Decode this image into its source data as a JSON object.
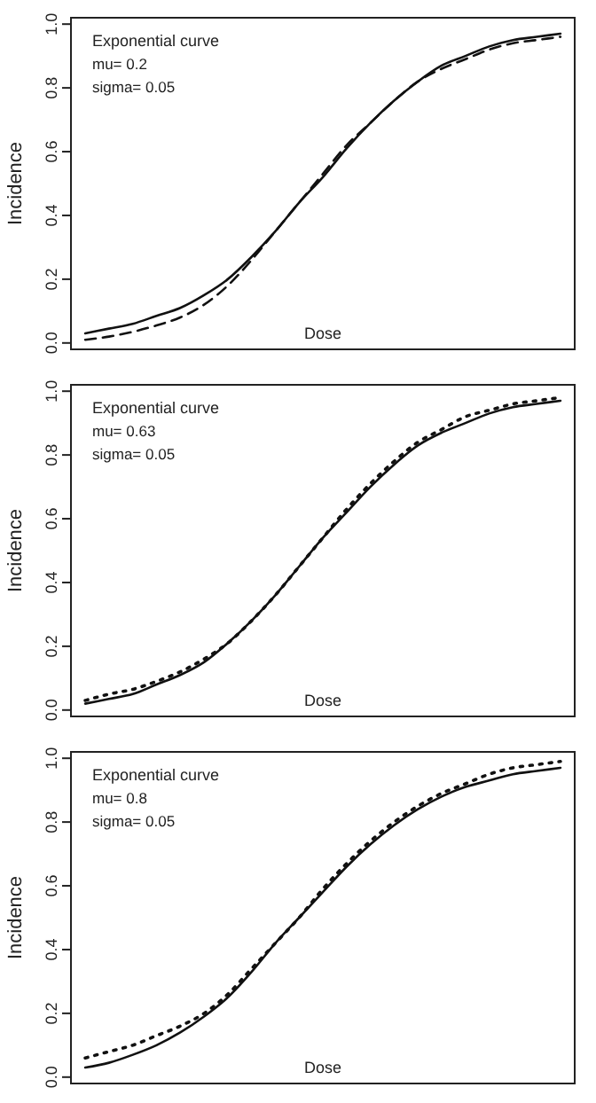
{
  "chart_data": [
    {
      "type": "line",
      "ylabel": "Incidence",
      "xlabel": "Dose",
      "annotations": [
        "Exponential curve",
        "mu= 0.2",
        "sigma= 0.05"
      ],
      "categories": [
        null,
        null,
        null,
        null,
        null,
        null,
        null,
        null,
        null,
        null,
        null,
        null,
        null,
        null,
        null,
        null,
        null,
        null,
        null,
        null,
        null
      ],
      "ylim": [
        -0.02,
        1.02
      ],
      "yticks": [
        {
          "value": 0,
          "label": "0.0"
        },
        {
          "value": 0.2,
          "label": "0.2"
        },
        {
          "value": 0.4,
          "label": "0.4"
        },
        {
          "value": 0.6,
          "label": "0.6"
        },
        {
          "value": 0.8,
          "label": "0.8"
        },
        {
          "value": 1,
          "label": "1.0"
        }
      ],
      "grid": false,
      "marker": "none",
      "series": [
        {
          "color": "#111111",
          "line_style": "solid",
          "values": [
            0.03,
            0.045,
            0.06,
            0.085,
            0.11,
            0.15,
            0.2,
            0.27,
            0.35,
            0.44,
            0.52,
            0.61,
            0.69,
            0.76,
            0.82,
            0.87,
            0.9,
            0.93,
            0.95,
            0.96,
            0.97
          ]
        },
        {
          "color": "#111111",
          "line_style": "dashed",
          "values": [
            0.01,
            0.02,
            0.035,
            0.055,
            0.08,
            0.12,
            0.18,
            0.26,
            0.35,
            0.44,
            0.53,
            0.62,
            0.69,
            0.76,
            0.82,
            0.86,
            0.89,
            0.92,
            0.94,
            0.95,
            0.96
          ]
        }
      ]
    },
    {
      "type": "line",
      "ylabel": "Incidence",
      "xlabel": "Dose",
      "annotations": [
        "Exponential curve",
        "mu= 0.63",
        "sigma= 0.05"
      ],
      "categories": [
        null,
        null,
        null,
        null,
        null,
        null,
        null,
        null,
        null,
        null,
        null,
        null,
        null,
        null,
        null,
        null,
        null,
        null,
        null,
        null,
        null
      ],
      "ylim": [
        -0.02,
        1.02
      ],
      "yticks": [
        {
          "value": 0,
          "label": "0.0"
        },
        {
          "value": 0.2,
          "label": "0.2"
        },
        {
          "value": 0.4,
          "label": "0.4"
        },
        {
          "value": 0.6,
          "label": "0.6"
        },
        {
          "value": 0.8,
          "label": "0.8"
        },
        {
          "value": 1,
          "label": "1.0"
        }
      ],
      "grid": false,
      "marker": "none",
      "series": [
        {
          "color": "#111111",
          "line_style": "solid",
          "values": [
            0.02,
            0.035,
            0.05,
            0.08,
            0.11,
            0.15,
            0.21,
            0.28,
            0.36,
            0.45,
            0.54,
            0.62,
            0.7,
            0.77,
            0.83,
            0.87,
            0.9,
            0.93,
            0.95,
            0.96,
            0.97
          ]
        },
        {
          "color": "#111111",
          "line_style": "dotted",
          "values": [
            0.03,
            0.05,
            0.065,
            0.09,
            0.12,
            0.16,
            0.21,
            0.28,
            0.36,
            0.45,
            0.54,
            0.63,
            0.71,
            0.78,
            0.84,
            0.88,
            0.92,
            0.94,
            0.96,
            0.97,
            0.98
          ]
        }
      ]
    },
    {
      "type": "line",
      "ylabel": "Incidence",
      "xlabel": "Dose",
      "annotations": [
        "Exponential curve",
        "mu= 0.8",
        "sigma= 0.05"
      ],
      "categories": [
        null,
        null,
        null,
        null,
        null,
        null,
        null,
        null,
        null,
        null,
        null,
        null,
        null,
        null,
        null,
        null,
        null,
        null,
        null,
        null,
        null
      ],
      "ylim": [
        -0.02,
        1.02
      ],
      "yticks": [
        {
          "value": 0,
          "label": "0.0"
        },
        {
          "value": 0.2,
          "label": "0.2"
        },
        {
          "value": 0.4,
          "label": "0.4"
        },
        {
          "value": 0.6,
          "label": "0.6"
        },
        {
          "value": 0.8,
          "label": "0.8"
        },
        {
          "value": 1,
          "label": "1.0"
        }
      ],
      "grid": false,
      "marker": "none",
      "series": [
        {
          "color": "#111111",
          "line_style": "solid",
          "values": [
            0.03,
            0.045,
            0.07,
            0.1,
            0.14,
            0.19,
            0.25,
            0.33,
            0.42,
            0.5,
            0.58,
            0.66,
            0.73,
            0.79,
            0.84,
            0.88,
            0.91,
            0.93,
            0.95,
            0.96,
            0.97
          ]
        },
        {
          "color": "#111111",
          "line_style": "dotted",
          "values": [
            0.06,
            0.08,
            0.1,
            0.13,
            0.16,
            0.2,
            0.26,
            0.34,
            0.42,
            0.5,
            0.59,
            0.67,
            0.74,
            0.8,
            0.85,
            0.89,
            0.92,
            0.95,
            0.97,
            0.98,
            0.99
          ]
        }
      ]
    }
  ]
}
